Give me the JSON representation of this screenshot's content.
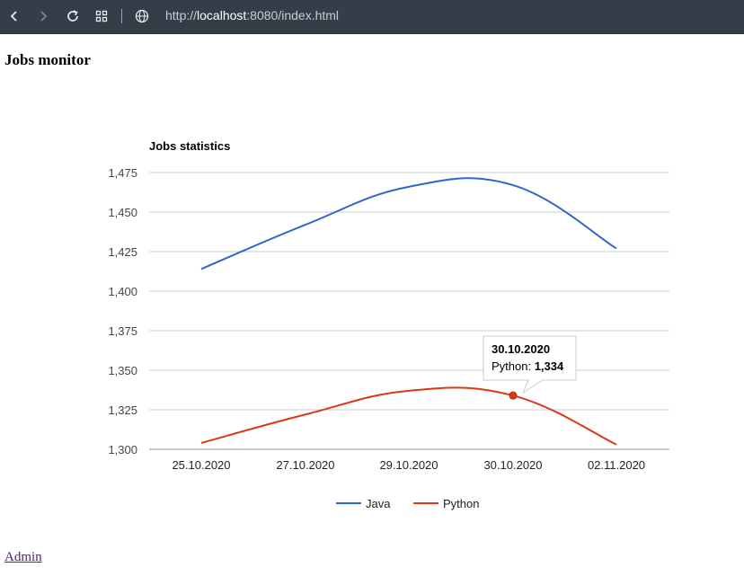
{
  "browser": {
    "url_prefix": "http://",
    "url_host": "localhost",
    "url_rest": ":8080/index.html"
  },
  "page": {
    "title": "Jobs monitor",
    "admin_link": "Admin"
  },
  "tooltip": {
    "date": "30.10.2020",
    "series_label": "Python: ",
    "value": "1,334"
  },
  "chart_data": {
    "type": "line",
    "title": "Jobs statistics",
    "categories": [
      "25.10.2020",
      "27.10.2020",
      "29.10.2020",
      "30.10.2020",
      "02.11.2020"
    ],
    "ylim": [
      1300,
      1475
    ],
    "yticks": [
      1300,
      1325,
      1350,
      1375,
      1400,
      1425,
      1450,
      1475
    ],
    "ytick_labels": [
      "1,300",
      "1,325",
      "1,350",
      "1,375",
      "1,400",
      "1,425",
      "1,450",
      "1,475"
    ],
    "grid": true,
    "legend": "bottom",
    "series": [
      {
        "name": "Java",
        "values": [
          1414,
          1442,
          1466,
          1467,
          1427
        ],
        "color": "#3366cc"
      },
      {
        "name": "Python",
        "values": [
          1304,
          1322,
          1337,
          1334,
          1303
        ],
        "color": "#dc3912"
      }
    ]
  }
}
